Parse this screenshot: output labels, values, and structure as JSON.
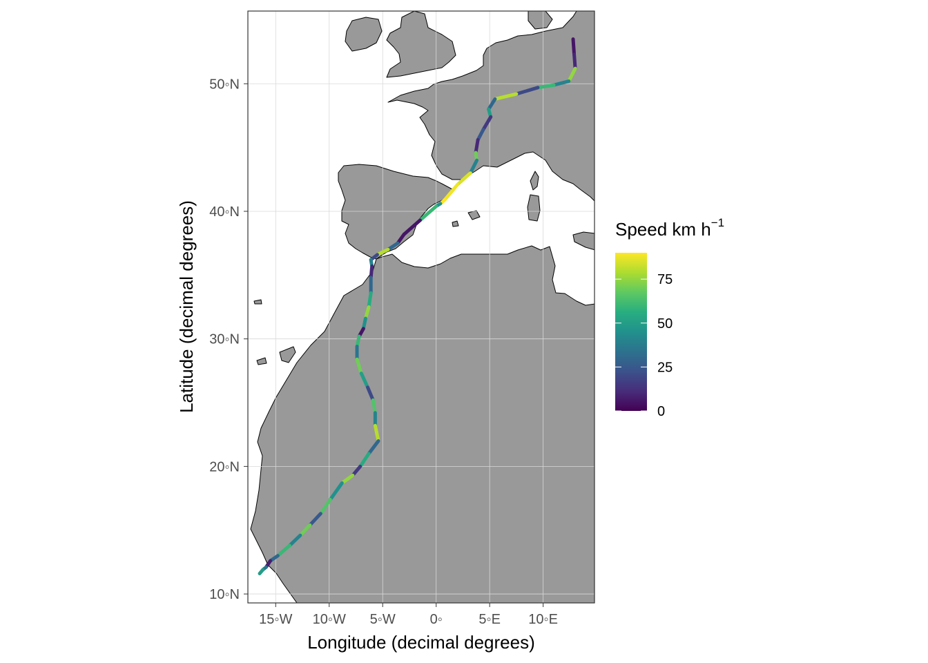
{
  "chart_data": {
    "type": "map",
    "xlabel": "Longitude (decimal degrees)",
    "ylabel": "Latitude (decimal degrees)",
    "xlim": [
      -17.6,
      14.8
    ],
    "ylim": [
      9.3,
      55.7
    ],
    "x_ticks": [
      {
        "value": -15,
        "label": "15◦W"
      },
      {
        "value": -10,
        "label": "10◦W"
      },
      {
        "value": -5,
        "label": "5◦W"
      },
      {
        "value": 0,
        "label": "0◦"
      },
      {
        "value": 5,
        "label": "5◦E"
      },
      {
        "value": 10,
        "label": "10◦E"
      }
    ],
    "y_ticks": [
      {
        "value": 10,
        "label": "10◦N"
      },
      {
        "value": 20,
        "label": "20◦N"
      },
      {
        "value": 30,
        "label": "30◦N"
      },
      {
        "value": 40,
        "label": "40◦N"
      },
      {
        "value": 50,
        "label": "50◦N"
      }
    ],
    "grid": true,
    "colors": {
      "land": "#999999",
      "sea": "#ffffff",
      "grid": "#d9d9d9",
      "coast": "#000000"
    },
    "legend": {
      "title": "Speed  km  h",
      "title_superscript": "−1",
      "position": "right",
      "scale": "viridis",
      "range": [
        0,
        90
      ],
      "ticks": [
        {
          "value": 0,
          "label": "0"
        },
        {
          "value": 25,
          "label": "25"
        },
        {
          "value": 50,
          "label": "50"
        },
        {
          "value": 75,
          "label": "75"
        }
      ]
    },
    "track": [
      {
        "lon": 12.8,
        "lat": 53.5,
        "speed": 5
      },
      {
        "lon": 12.9,
        "lat": 52.3,
        "speed": 10
      },
      {
        "lon": 13.0,
        "lat": 51.2,
        "speed": 75
      },
      {
        "lon": 12.4,
        "lat": 50.2,
        "speed": 40
      },
      {
        "lon": 11.0,
        "lat": 49.9,
        "speed": 60
      },
      {
        "lon": 9.5,
        "lat": 49.7,
        "speed": 20
      },
      {
        "lon": 7.5,
        "lat": 49.2,
        "speed": 80
      },
      {
        "lon": 5.5,
        "lat": 48.8,
        "speed": 30
      },
      {
        "lon": 4.9,
        "lat": 48.0,
        "speed": 50
      },
      {
        "lon": 5.1,
        "lat": 47.4,
        "speed": 15
      },
      {
        "lon": 4.4,
        "lat": 46.4,
        "speed": 25
      },
      {
        "lon": 3.9,
        "lat": 45.6,
        "speed": 10
      },
      {
        "lon": 3.7,
        "lat": 44.6,
        "speed": 70
      },
      {
        "lon": 3.8,
        "lat": 44.0,
        "speed": 40
      },
      {
        "lon": 3.2,
        "lat": 43.0,
        "speed": 85
      },
      {
        "lon": 2.0,
        "lat": 42.1,
        "speed": 88
      },
      {
        "lon": 0.8,
        "lat": 40.9,
        "speed": 90
      },
      {
        "lon": 0.4,
        "lat": 40.6,
        "speed": 45
      },
      {
        "lon": 0.0,
        "lat": 40.4,
        "speed": 60
      },
      {
        "lon": -1.5,
        "lat": 39.3,
        "speed": 5
      },
      {
        "lon": -3.0,
        "lat": 38.2,
        "speed": 5
      },
      {
        "lon": -3.6,
        "lat": 37.5,
        "speed": 30
      },
      {
        "lon": -4.5,
        "lat": 37.0,
        "speed": 80
      },
      {
        "lon": -5.5,
        "lat": 36.6,
        "speed": 20
      },
      {
        "lon": -6.1,
        "lat": 36.2,
        "speed": 40
      },
      {
        "lon": -6.0,
        "lat": 35.7,
        "speed": 10
      },
      {
        "lon": -6.1,
        "lat": 34.8,
        "speed": 30
      },
      {
        "lon": -6.1,
        "lat": 33.6,
        "speed": 55
      },
      {
        "lon": -6.3,
        "lat": 32.5,
        "speed": 75
      },
      {
        "lon": -6.6,
        "lat": 31.6,
        "speed": 45
      },
      {
        "lon": -6.8,
        "lat": 30.8,
        "speed": 5
      },
      {
        "lon": -7.2,
        "lat": 30.2,
        "speed": 60
      },
      {
        "lon": -7.4,
        "lat": 29.4,
        "speed": 35
      },
      {
        "lon": -7.4,
        "lat": 28.4,
        "speed": 70
      },
      {
        "lon": -7.0,
        "lat": 27.3,
        "speed": 50
      },
      {
        "lon": -6.4,
        "lat": 26.2,
        "speed": 20
      },
      {
        "lon": -5.9,
        "lat": 25.2,
        "speed": 65
      },
      {
        "lon": -5.7,
        "lat": 24.2,
        "speed": 40
      },
      {
        "lon": -5.7,
        "lat": 23.2,
        "speed": 80
      },
      {
        "lon": -5.4,
        "lat": 22.0,
        "speed": 30
      },
      {
        "lon": -6.3,
        "lat": 21.0,
        "speed": 55
      },
      {
        "lon": -7.1,
        "lat": 20.0,
        "speed": 15
      },
      {
        "lon": -7.8,
        "lat": 19.3,
        "speed": 75
      },
      {
        "lon": -8.8,
        "lat": 18.7,
        "speed": 45
      },
      {
        "lon": -9.9,
        "lat": 17.4,
        "speed": 65
      },
      {
        "lon": -10.8,
        "lat": 16.3,
        "speed": 25
      },
      {
        "lon": -11.8,
        "lat": 15.4,
        "speed": 70
      },
      {
        "lon": -12.7,
        "lat": 14.6,
        "speed": 40
      },
      {
        "lon": -13.7,
        "lat": 13.8,
        "speed": 60
      },
      {
        "lon": -14.8,
        "lat": 13.0,
        "speed": 30
      },
      {
        "lon": -15.5,
        "lat": 12.6,
        "speed": 8
      },
      {
        "lon": -15.9,
        "lat": 12.1,
        "speed": 35
      },
      {
        "lon": -16.2,
        "lat": 11.9,
        "speed": 50
      },
      {
        "lon": -16.5,
        "lat": 11.6,
        "speed": 40
      }
    ]
  }
}
